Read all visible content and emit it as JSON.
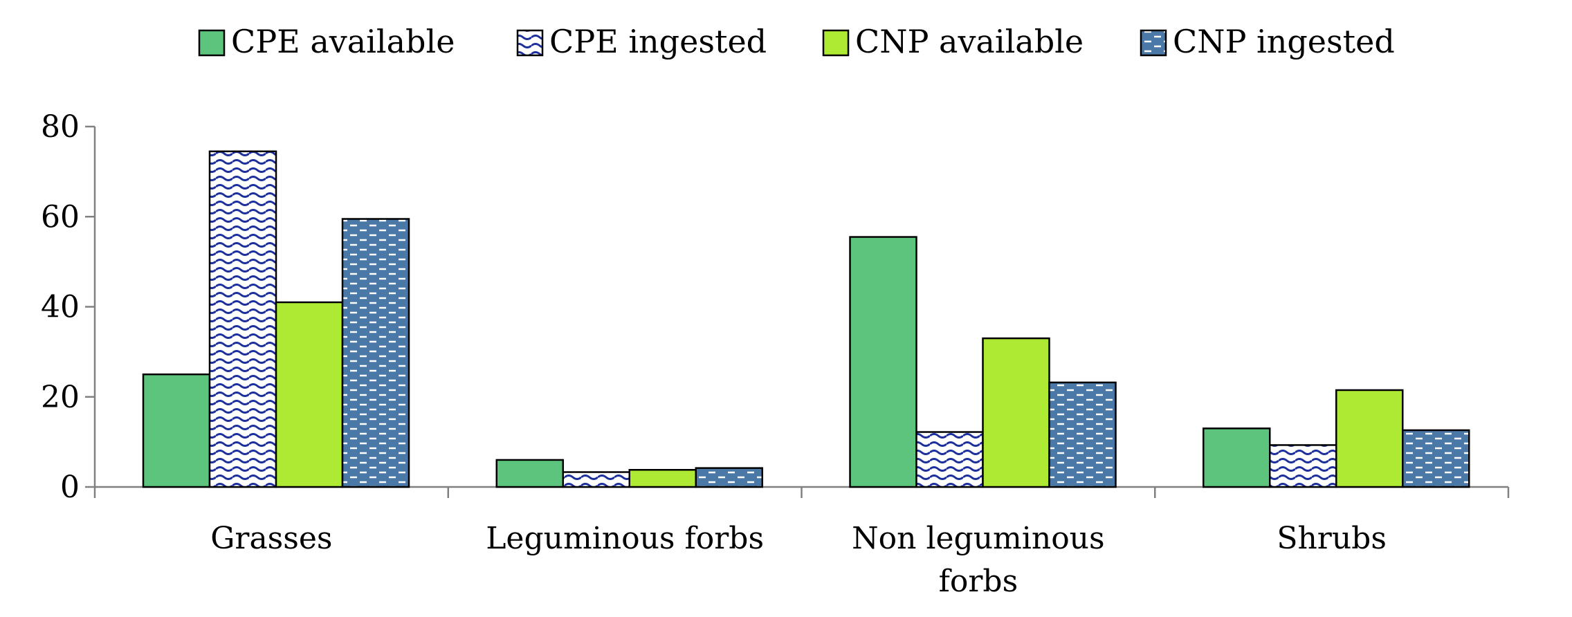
{
  "chart_data": {
    "type": "bar",
    "title": "",
    "xlabel": "",
    "ylabel": "",
    "ylim": [
      0,
      80
    ],
    "yticks": [
      0,
      20,
      40,
      60,
      80
    ],
    "grid": false,
    "legend_placement": "top",
    "categories": [
      "Grasses",
      "Leguminous forbs",
      "Non leguminous forbs",
      "Shrubs"
    ],
    "series": [
      {
        "name": "CPE available",
        "values": [
          25,
          6,
          55.5,
          13
        ],
        "color": "#5cc47c",
        "pattern": "solid"
      },
      {
        "name": "CPE ingested",
        "values": [
          74.5,
          3.3,
          12.2,
          9.3
        ],
        "color": "#1c2f9c",
        "pattern": "wavy-dots"
      },
      {
        "name": "CNP available",
        "values": [
          41,
          3.8,
          33,
          21.5
        ],
        "color": "#aeea34",
        "pattern": "solid"
      },
      {
        "name": "CNP ingested",
        "values": [
          59.5,
          4.2,
          23.2,
          12.6
        ],
        "color": "#4a79a8",
        "pattern": "dashes"
      }
    ]
  }
}
